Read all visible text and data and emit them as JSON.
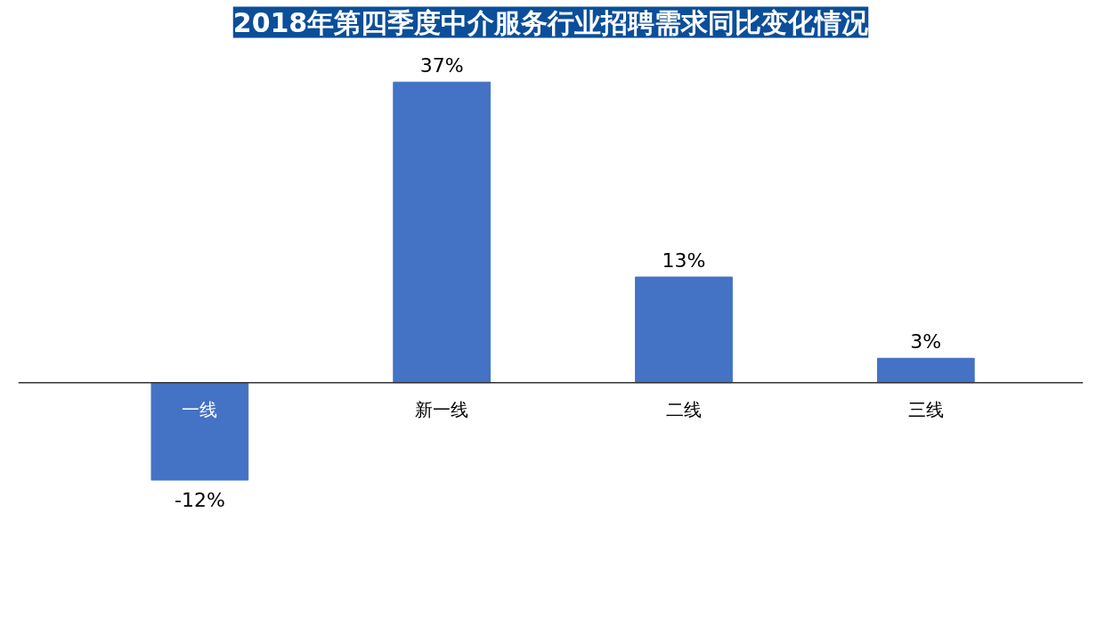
{
  "chart_data": {
    "type": "bar",
    "title": "2018年第四季度中介服务行业招聘需求同比变化情况",
    "categories": [
      "一线",
      "新一线",
      "二线",
      "三线"
    ],
    "values": [
      -12,
      37,
      13,
      3
    ],
    "value_labels": [
      "-12%",
      "37%",
      "13%",
      "3%"
    ],
    "color": "#4472c4",
    "grid": false
  }
}
